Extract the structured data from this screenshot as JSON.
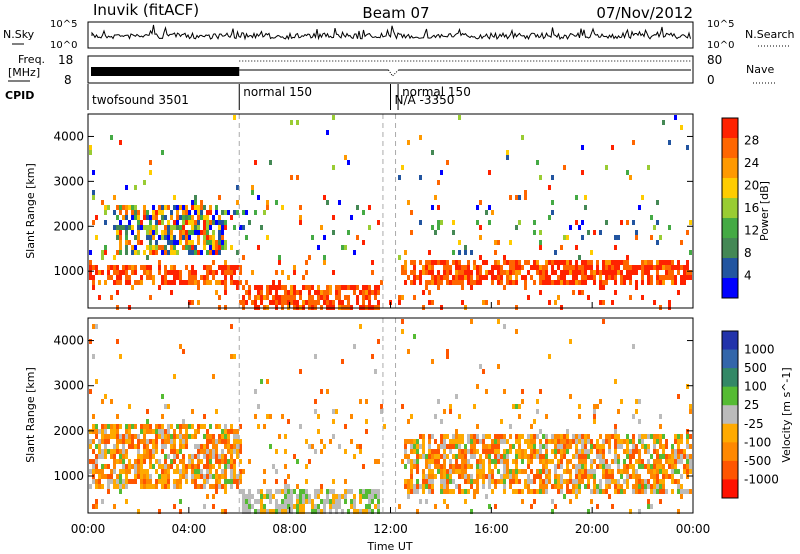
{
  "header": {
    "station": "Inuvik (fitACF)",
    "beam": "Beam 07",
    "date": "07/Nov/2012"
  },
  "status_panels": {
    "nsky_label": "N.Sky",
    "nsky_ticks": [
      "10^5",
      "10^0"
    ],
    "nsearch_label": "N.Search",
    "nsearch_ticks": [
      "10^5",
      "10^0"
    ],
    "freq_label_1": "Freq.",
    "freq_label_2": "[MHz]",
    "freq_ticks": [
      18,
      8
    ],
    "nave_label": "Nave",
    "nave_ticks": [
      80,
      0
    ],
    "cpid_label": "CPID",
    "cpid_segments": [
      {
        "label": "twofsound 3501",
        "start_hour": 0.0
      },
      {
        "label": "normal 150",
        "start_hour": 6.0
      },
      {
        "label": "N/A -3350",
        "start_hour": 12.0
      },
      {
        "label": "normal 150",
        "start_hour": 12.3
      }
    ]
  },
  "chart_data": [
    {
      "type": "heatmap",
      "quantity": "Power",
      "ylabel": "Slant Range [km]",
      "colorbar_label": "Power [dB]",
      "colorbar_ticks": [
        4,
        8,
        12,
        16,
        20,
        24,
        28
      ],
      "color_scale": [
        "#0000ff",
        "#2255a0",
        "#448855",
        "#44aa44",
        "#99cc33",
        "#ffcc00",
        "#ff9900",
        "#ff6600",
        "#ff2200"
      ],
      "ylim": [
        180,
        4500
      ],
      "yticks": [
        1000,
        2000,
        3000,
        4000
      ],
      "xlim_hours": [
        0,
        24
      ],
      "observations": [
        {
          "hours": [
            0.0,
            6.0
          ],
          "range_km": [
            800,
            1200
          ],
          "level": "high"
        },
        {
          "hours": [
            6.0,
            11.5
          ],
          "range_km": [
            200,
            700
          ],
          "level": "high"
        },
        {
          "hours": [
            12.5,
            24.0
          ],
          "range_km": [
            700,
            1300
          ],
          "level": "high"
        },
        {
          "hours": [
            1.0,
            5.5
          ],
          "range_km": [
            1400,
            2500
          ],
          "level": "medium"
        }
      ]
    },
    {
      "type": "heatmap",
      "quantity": "Velocity",
      "ylabel": "Slant Range [km]",
      "colorbar_label": "Velocity [m s^-1]",
      "colorbar_ticks": [
        "1000",
        "500",
        "100",
        "25",
        "-25",
        "-100",
        "-500",
        "-1000"
      ],
      "color_scale": [
        "#2233aa",
        "#3366aa",
        "#338866",
        "#55bb33",
        "#bbbbbb",
        "#ffaa00",
        "#ff8800",
        "#ff5500",
        "#ff1100"
      ],
      "ylim": [
        180,
        4500
      ],
      "yticks": [
        1000,
        2000,
        3000,
        4000
      ],
      "xlim_hours": [
        0,
        24
      ],
      "observations": [
        {
          "hours": [
            0.0,
            6.0
          ],
          "range_km": [
            800,
            2200
          ],
          "level": "negative"
        },
        {
          "hours": [
            6.0,
            11.5
          ],
          "range_km": [
            200,
            800
          ],
          "level": "low"
        },
        {
          "hours": [
            12.5,
            24.0
          ],
          "range_km": [
            700,
            2000
          ],
          "level": "negative"
        }
      ]
    }
  ],
  "x_axis": {
    "label": "Time UT",
    "ticks": [
      "00:00",
      "04:00",
      "08:00",
      "12:00",
      "16:00",
      "20:00",
      "00:00"
    ]
  }
}
